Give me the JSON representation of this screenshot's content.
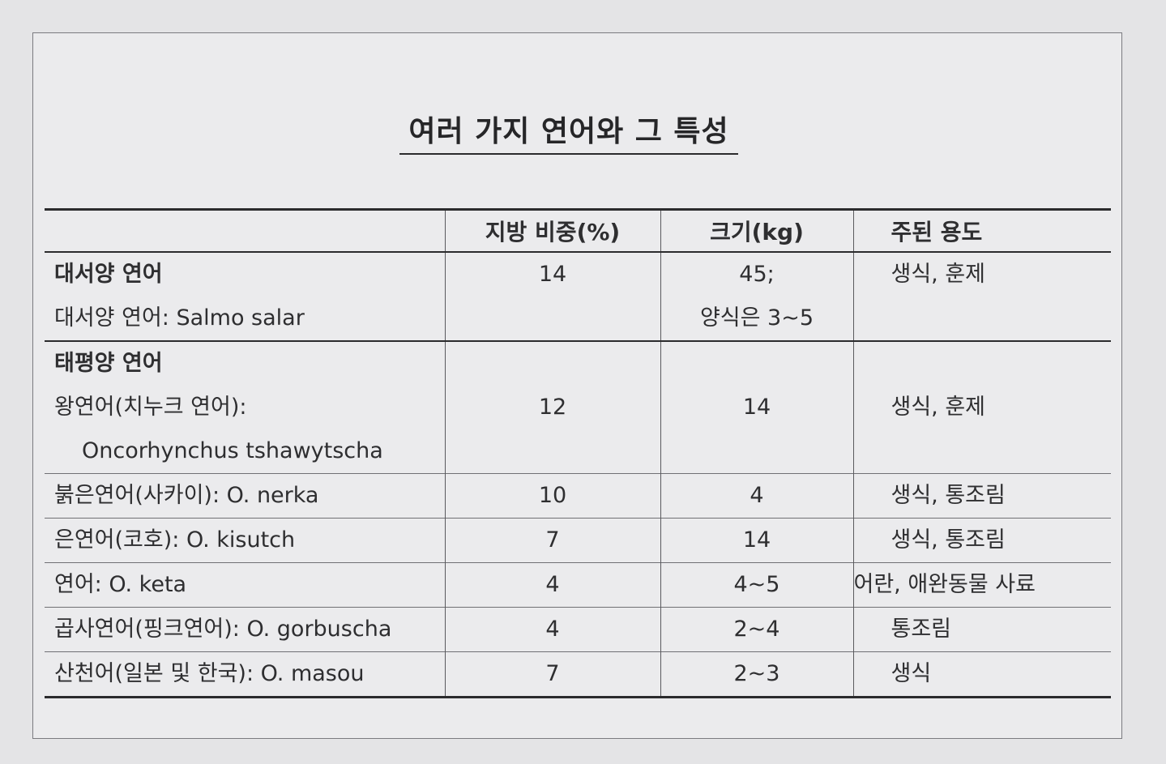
{
  "title": "여러 가지 연어와 그 특성",
  "table": {
    "headers": {
      "name": "",
      "fat": "지방 비중(%)",
      "size": "크기(kg)",
      "use": "주된 용도"
    },
    "atlantic": {
      "group_label": "대서양 연어",
      "species": "대서양 연어: Salmo salar",
      "fat": "14",
      "size_line1": "45;",
      "size_line2": "양식은 3~5",
      "use": "생식, 훈제"
    },
    "pacific": {
      "group_label": "태평양 연어",
      "king_line1": "왕연어(치누크 연어):",
      "king_line2": "Oncorhynchus tshawytscha",
      "king_fat": "12",
      "king_size": "14",
      "king_use": "생식, 훈제"
    },
    "rows": [
      {
        "name": "붉은연어(사카이): O. nerka",
        "fat": "10",
        "size": "4",
        "use": "생식, 통조림"
      },
      {
        "name": "은연어(코호): O. kisutch",
        "fat": "7",
        "size": "14",
        "use": "생식, 통조림"
      },
      {
        "name": "연어: O. keta",
        "fat": "4",
        "size": "4~5",
        "use": "어란, 애완동물 사료"
      },
      {
        "name": "곱사연어(핑크연어): O. gorbuscha",
        "fat": "4",
        "size": "2~4",
        "use": "통조림"
      },
      {
        "name": "산천어(일본 및 한국): O. masou",
        "fat": "7",
        "size": "2~3",
        "use": "생식"
      }
    ]
  }
}
